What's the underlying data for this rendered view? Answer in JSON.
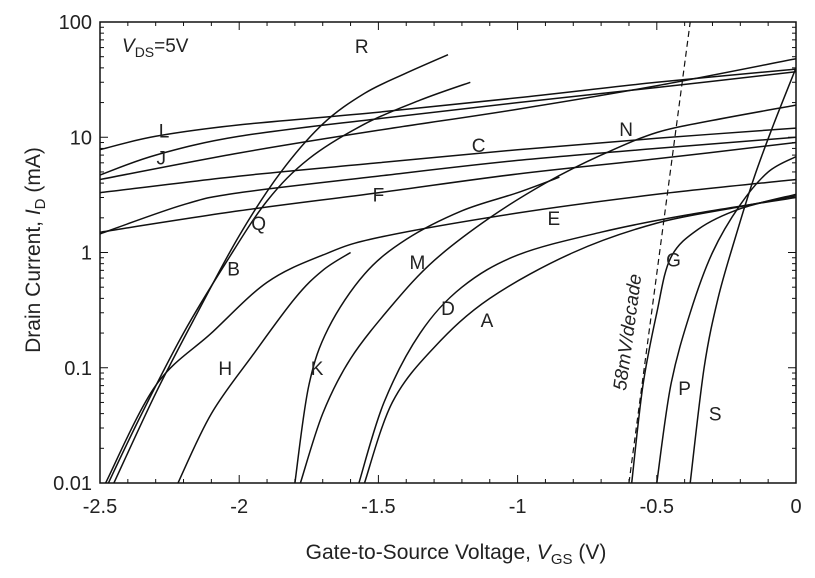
{
  "chart_data": {
    "type": "line",
    "title": "",
    "xlabel": "Gate-to-Source Voltage, ",
    "xlabel_var": "V",
    "xlabel_sub": "GS",
    "xlabel_unit": " (V)",
    "ylabel": "Drain Current, ",
    "ylabel_var": "I",
    "ylabel_sub": "D",
    "ylabel_unit": " (mA)",
    "xlim": [
      -2.5,
      0
    ],
    "ylim": [
      0.01,
      100
    ],
    "yscale": "log",
    "grid": false,
    "legend": "none",
    "x_tick_labels": [
      "-2.5",
      "-2",
      "-1.5",
      "-1",
      "-0.5",
      "0"
    ],
    "y_tick_labels": [
      "0.01",
      "0.1",
      "1",
      "10",
      "100"
    ],
    "annotation": {
      "var": "V",
      "sub": "DS",
      "rest": "=5V"
    },
    "reference_line": {
      "label": "58mV/decade",
      "points": [
        [
          -0.6,
          0.01
        ],
        [
          -0.38,
          100
        ]
      ]
    },
    "series": [
      {
        "label": "A",
        "points": [
          [
            -1.55,
            0.01
          ],
          [
            -1.45,
            0.05
          ],
          [
            -1.3,
            0.15
          ],
          [
            -1.1,
            0.4
          ],
          [
            -0.8,
            1.0
          ],
          [
            -0.5,
            1.8
          ],
          [
            -0.2,
            2.5
          ],
          [
            0,
            3.1
          ]
        ]
      },
      {
        "label": "B",
        "points": [
          [
            -2.48,
            0.01
          ],
          [
            -2.3,
            0.07
          ],
          [
            -2.1,
            0.2
          ],
          [
            -1.9,
            0.55
          ],
          [
            -1.7,
            0.95
          ],
          [
            -1.5,
            1.35
          ],
          [
            -1.0,
            2.2
          ],
          [
            -0.5,
            3.2
          ],
          [
            0,
            4.3
          ]
        ]
      },
      {
        "label": "C",
        "points": [
          [
            -2.5,
            3.3
          ],
          [
            -2.0,
            4.6
          ],
          [
            -1.5,
            6.0
          ],
          [
            -1.0,
            7.8
          ],
          [
            -0.5,
            9.8
          ],
          [
            0,
            12
          ]
        ]
      },
      {
        "label": "D",
        "points": [
          [
            -1.57,
            0.01
          ],
          [
            -1.48,
            0.05
          ],
          [
            -1.35,
            0.2
          ],
          [
            -1.2,
            0.5
          ],
          [
            -1.0,
            0.95
          ],
          [
            -0.7,
            1.5
          ],
          [
            -0.4,
            2.1
          ],
          [
            0,
            3.0
          ]
        ]
      },
      {
        "label": "E",
        "points": [
          [
            -2.5,
            1.5
          ],
          [
            -2.0,
            2.3
          ],
          [
            -1.5,
            3.3
          ],
          [
            -1.0,
            4.8
          ],
          [
            -0.5,
            6.5
          ],
          [
            0,
            9
          ]
        ]
      },
      {
        "label": "F",
        "points": [
          [
            -2.5,
            1.45
          ],
          [
            -2.2,
            2.6
          ],
          [
            -2.0,
            3.3
          ],
          [
            -1.5,
            4.6
          ],
          [
            -1.0,
            6.3
          ],
          [
            -0.5,
            8.0
          ],
          [
            0,
            10
          ]
        ]
      },
      {
        "label": "G",
        "points": [
          [
            -0.59,
            0.01
          ],
          [
            -0.55,
            0.07
          ],
          [
            -0.5,
            0.3
          ],
          [
            -0.45,
            0.9
          ],
          [
            -0.35,
            1.6
          ],
          [
            -0.2,
            2.4
          ],
          [
            0,
            3.2
          ]
        ]
      },
      {
        "label": "H",
        "points": [
          [
            -2.22,
            0.01
          ],
          [
            -2.1,
            0.04
          ],
          [
            -1.95,
            0.13
          ],
          [
            -1.8,
            0.4
          ],
          [
            -1.7,
            0.7
          ],
          [
            -1.6,
            1.0
          ]
        ]
      },
      {
        "label": "J",
        "points": [
          [
            -2.5,
            4.7
          ],
          [
            -2.3,
            7.0
          ],
          [
            -2.0,
            10.2
          ],
          [
            -1.5,
            14.5
          ],
          [
            -1.0,
            20
          ],
          [
            -0.5,
            27
          ],
          [
            0,
            37
          ]
        ]
      },
      {
        "label": "K",
        "points": [
          [
            -1.8,
            0.01
          ],
          [
            -1.75,
            0.07
          ],
          [
            -1.68,
            0.22
          ],
          [
            -1.55,
            0.65
          ],
          [
            -1.4,
            1.3
          ],
          [
            -1.2,
            2.3
          ],
          [
            -1.0,
            3.3
          ],
          [
            -0.85,
            4.5
          ]
        ]
      },
      {
        "label": "L",
        "points": [
          [
            -2.5,
            7.8
          ],
          [
            -2.3,
            10.2
          ],
          [
            -2.0,
            12.8
          ],
          [
            -1.5,
            16.5
          ],
          [
            -1.0,
            22
          ],
          [
            -0.5,
            30
          ],
          [
            0,
            39
          ]
        ]
      },
      {
        "label": "M",
        "points": [
          [
            -1.78,
            0.01
          ],
          [
            -1.7,
            0.04
          ],
          [
            -1.6,
            0.12
          ],
          [
            -1.45,
            0.35
          ],
          [
            -1.3,
            0.85
          ],
          [
            -1.1,
            2.0
          ],
          [
            -0.9,
            4.0
          ],
          [
            -0.7,
            7.0
          ],
          [
            -0.5,
            11
          ],
          [
            -0.3,
            14
          ],
          [
            0,
            19
          ]
        ]
      },
      {
        "label": "N",
        "points": [
          [
            -2.5,
            4.3
          ],
          [
            -2.0,
            7.3
          ],
          [
            -1.5,
            11.5
          ],
          [
            -1.0,
            17.5
          ],
          [
            -0.5,
            28
          ],
          [
            0,
            48
          ]
        ]
      },
      {
        "label": "P",
        "points": [
          [
            -0.5,
            0.01
          ],
          [
            -0.45,
            0.07
          ],
          [
            -0.38,
            0.3
          ],
          [
            -0.3,
            1.0
          ],
          [
            -0.2,
            2.6
          ],
          [
            -0.1,
            5.0
          ],
          [
            0,
            6.8
          ]
        ]
      },
      {
        "label": "Q",
        "points": [
          [
            -2.47,
            0.01
          ],
          [
            -2.35,
            0.04
          ],
          [
            -2.2,
            0.2
          ],
          [
            -2.05,
            0.8
          ],
          [
            -1.9,
            2.8
          ],
          [
            -1.75,
            6.5
          ],
          [
            -1.55,
            13
          ],
          [
            -1.35,
            21
          ],
          [
            -1.17,
            30
          ]
        ]
      },
      {
        "label": "R",
        "points": [
          [
            -2.45,
            0.01
          ],
          [
            -2.3,
            0.06
          ],
          [
            -2.15,
            0.3
          ],
          [
            -2.0,
            1.4
          ],
          [
            -1.85,
            5.0
          ],
          [
            -1.7,
            13
          ],
          [
            -1.55,
            24
          ],
          [
            -1.4,
            36
          ],
          [
            -1.25,
            52
          ]
        ]
      },
      {
        "label": "S",
        "points": [
          [
            -0.38,
            0.01
          ],
          [
            -0.33,
            0.1
          ],
          [
            -0.28,
            0.4
          ],
          [
            -0.22,
            1.3
          ],
          [
            -0.15,
            4.5
          ],
          [
            -0.08,
            13
          ],
          [
            0,
            40
          ]
        ]
      }
    ],
    "label_positions": [
      {
        "label": "A",
        "x": -1.11,
        "y": 0.26
      },
      {
        "label": "B",
        "x": -2.02,
        "y": 0.73
      },
      {
        "label": "C",
        "x": -1.14,
        "y": 8.6
      },
      {
        "label": "D",
        "x": -1.25,
        "y": 0.33
      },
      {
        "label": "E",
        "x": -0.87,
        "y": 2.0
      },
      {
        "label": "F",
        "x": -1.5,
        "y": 3.2
      },
      {
        "label": "G",
        "x": -0.44,
        "y": 0.87
      },
      {
        "label": "H",
        "x": -2.05,
        "y": 0.1
      },
      {
        "label": "J",
        "x": -2.28,
        "y": 6.7
      },
      {
        "label": "K",
        "x": -1.72,
        "y": 0.1
      },
      {
        "label": "L",
        "x": -2.27,
        "y": 11.4
      },
      {
        "label": "M",
        "x": -1.36,
        "y": 0.83
      },
      {
        "label": "N",
        "x": -0.61,
        "y": 11.8
      },
      {
        "label": "P",
        "x": -0.4,
        "y": 0.067
      },
      {
        "label": "Q",
        "x": -1.93,
        "y": 1.8
      },
      {
        "label": "R",
        "x": -1.56,
        "y": 62
      },
      {
        "label": "S",
        "x": -0.29,
        "y": 0.04
      }
    ]
  }
}
